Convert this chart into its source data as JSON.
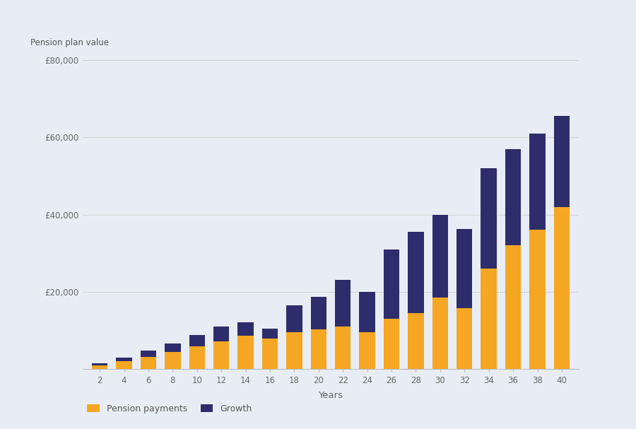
{
  "years": [
    2,
    4,
    6,
    8,
    10,
    12,
    14,
    16,
    18,
    20,
    22,
    24,
    26,
    28,
    30,
    32,
    34,
    36,
    38,
    40
  ],
  "pension_payments": [
    1000,
    2000,
    3200,
    4400,
    5800,
    7200,
    8600,
    7800,
    9500,
    10200,
    11000,
    9500,
    13000,
    14500,
    18500,
    15800,
    26000,
    32000,
    36000,
    42000
  ],
  "growth": [
    500,
    900,
    1500,
    2200,
    3000,
    3800,
    3400,
    2600,
    7000,
    8500,
    12000,
    10500,
    18000,
    21000,
    21500,
    20500,
    26000,
    25000,
    25000,
    23500
  ],
  "pension_color": "#F5A623",
  "growth_color": "#2E2D6B",
  "background_color": "#E8EDF5",
  "ylabel": "Pension plan value",
  "xlabel": "Years",
  "legend_pension": "Pension payments",
  "legend_growth": "Growth",
  "ylim": [
    0,
    80000
  ],
  "yticks": [
    20000,
    40000,
    60000,
    80000
  ],
  "ytick_labels": [
    "£20,000",
    "£40,000",
    "£60,000",
    "£80,000"
  ]
}
